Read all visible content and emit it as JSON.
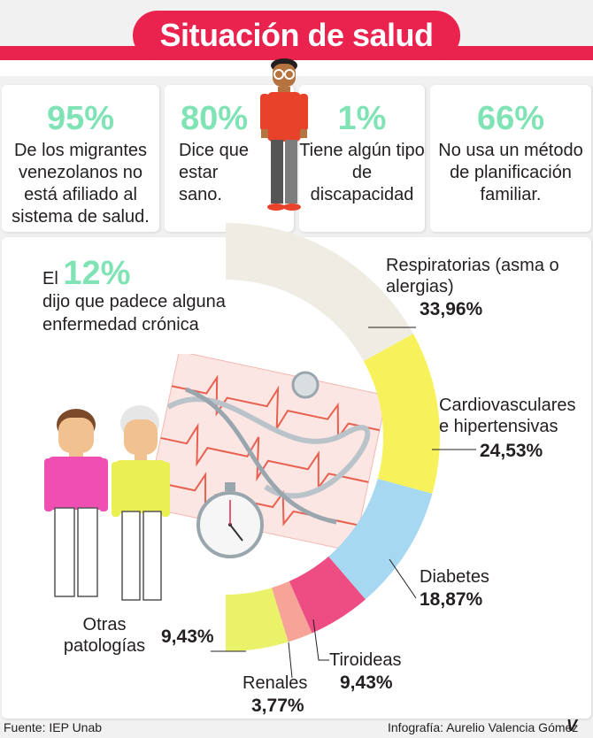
{
  "title": "Situación de salud",
  "stats": [
    {
      "value": "95%",
      "text": "De los migrantes venezolanos no está afiliado al sistema de salud."
    },
    {
      "value": "80%",
      "text": "Dice que estar sano."
    },
    {
      "value": "1%",
      "text": "Tiene algún tipo de discapacidad"
    },
    {
      "value": "66%",
      "text": "No usa un método de planificación familiar."
    }
  ],
  "chronic": {
    "prefix": "El",
    "value": "12%",
    "text": "dijo que padece alguna enfermedad crónica"
  },
  "chart_data": {
    "type": "pie",
    "categories": [
      "Respiratorias (asma o alergias)",
      "Cardiovasculares e hipertensivas",
      "Diabetes",
      "Tiroideas",
      "Renales",
      "Otras patologías"
    ],
    "values": [
      33.96,
      24.53,
      18.87,
      9.43,
      3.77,
      9.43
    ],
    "value_labels": [
      "33,96%",
      "24,53%",
      "18,87%",
      "9,43%",
      "3,77%",
      "9,43%"
    ],
    "colors": [
      "#efece4",
      "#f7f25b",
      "#a6d8f2",
      "#ee4d83",
      "#f5a497",
      "#eaf26a"
    ]
  },
  "colors": {
    "accent": "#e9234d",
    "highlight": "#7fe3b5"
  },
  "footer": {
    "source": "Fuente: IEP Unab",
    "credit": "Infografía: Aurelio Valencia Gómez",
    "logo": "V"
  }
}
